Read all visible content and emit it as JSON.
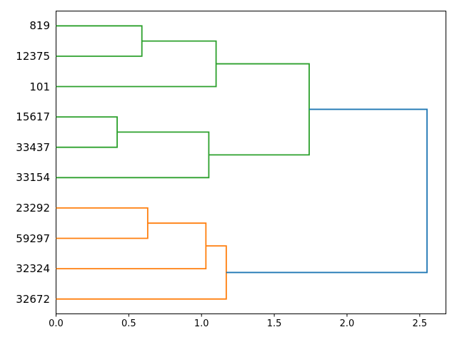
{
  "figure": {
    "background": "#ffffff",
    "border_color": "#000000"
  },
  "chart_data": {
    "type": "dendrogram",
    "orientation": "right",
    "title": "",
    "xlabel": "",
    "ylabel": "",
    "grid": false,
    "legend": null,
    "leaves": [
      "819",
      "12375",
      "101",
      "15617",
      "33437",
      "33154",
      "23292",
      "59297",
      "32324",
      "32672"
    ],
    "xlim": [
      0,
      2.68
    ],
    "xticks": [
      {
        "value": 0.0,
        "label": "0.0"
      },
      {
        "value": 0.5,
        "label": "0.5"
      },
      {
        "value": 1.0,
        "label": "1.0"
      },
      {
        "value": 1.5,
        "label": "1.5"
      },
      {
        "value": 2.0,
        "label": "2.0"
      },
      {
        "value": 2.5,
        "label": "2.5"
      }
    ],
    "colors": {
      "green": "#2ca02c",
      "orange": "#ff7f0e",
      "blue": "#1f77b4",
      "axis": "#000000",
      "text": "#000000"
    },
    "links": [
      {
        "children": [
          3,
          4
        ],
        "distance": 0.42,
        "color": "green",
        "note": "15617+33437"
      },
      {
        "children": [
          0,
          1
        ],
        "distance": 0.59,
        "color": "green",
        "note": "819+12375"
      },
      {
        "children": [
          6,
          7
        ],
        "distance": 0.63,
        "color": "orange",
        "note": "23292+59297"
      },
      {
        "children": [
          12,
          8
        ],
        "distance": 1.03,
        "color": "orange",
        "note": "(23292,59297)+32324"
      },
      {
        "children": [
          10,
          5
        ],
        "distance": 1.05,
        "color": "green",
        "note": "(15617,33437)+33154"
      },
      {
        "children": [
          11,
          2
        ],
        "distance": 1.1,
        "color": "green",
        "note": "(819,12375)+101"
      },
      {
        "children": [
          13,
          9
        ],
        "distance": 1.17,
        "color": "orange",
        "note": "orange-cluster+32672"
      },
      {
        "children": [
          15,
          14
        ],
        "distance": 1.74,
        "color": "green",
        "note": "green-cluster-root"
      },
      {
        "children": [
          17,
          16
        ],
        "distance": 2.55,
        "color": "blue",
        "note": "root"
      }
    ]
  }
}
